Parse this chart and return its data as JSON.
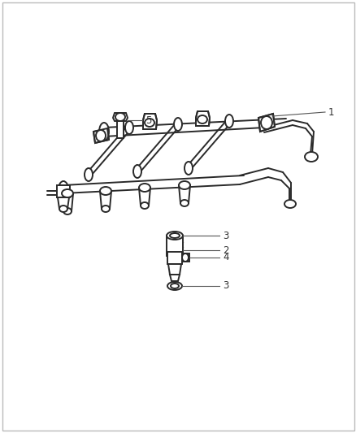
{
  "bg_color": "#ffffff",
  "line_color": "#2a2a2a",
  "label_color": "#555555",
  "fig_width": 4.39,
  "fig_height": 5.33,
  "dpi": 100,
  "outer_border_color": "#cccccc",
  "font_size": 8.5
}
